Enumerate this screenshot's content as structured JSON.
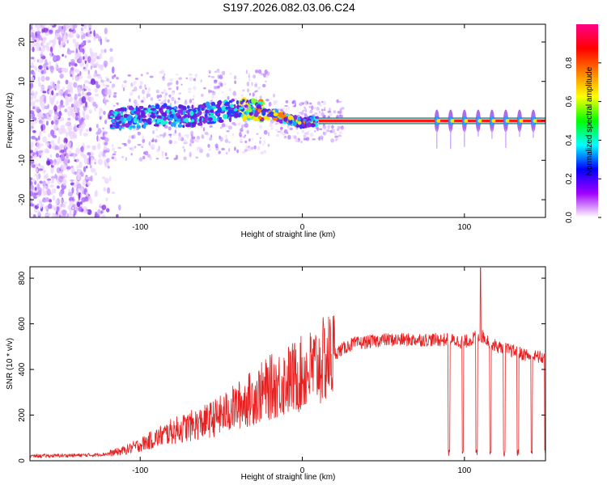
{
  "chart_data": [
    {
      "id": "spectrogram",
      "type": "heatmap",
      "title": "S197.2026.082.03.06.C24",
      "xlabel": "Height of straight line (km)",
      "ylabel": "Frequency (Hz)",
      "xlim": [
        -168,
        150
      ],
      "ylim": [
        -24.5,
        24.5
      ],
      "xticks": [
        -100,
        0,
        100
      ],
      "xtick_labels": [
        "-100",
        "0",
        "100"
      ],
      "yticks": [
        20,
        10,
        0,
        -10,
        -20
      ],
      "ytick_labels": [
        "20",
        "10",
        "0",
        "-10",
        "-20"
      ],
      "colorbar": {
        "label": "Normalized spectral amplitude",
        "range": [
          0.0,
          1.0
        ],
        "ticks": [
          0.0,
          0.2,
          0.4,
          0.6,
          0.8
        ],
        "tick_labels": [
          "0.0",
          "0.2",
          "0.4",
          "0.6",
          "0.8"
        ],
        "colors": [
          "#ffffff",
          "#a000ff",
          "#0000ff",
          "#00ffff",
          "#00ff00",
          "#ffff00",
          "#ff8000",
          "#ff0000",
          "#ff0088"
        ]
      },
      "carrier_track": [
        {
          "x": -115,
          "f": 0.5
        },
        {
          "x": -100,
          "f": 1.0
        },
        {
          "x": -85,
          "f": 1.5
        },
        {
          "x": -70,
          "f": 1.0
        },
        {
          "x": -55,
          "f": 2.0
        },
        {
          "x": -40,
          "f": 3.0
        },
        {
          "x": -30,
          "f": 3.0
        },
        {
          "x": -20,
          "f": 2.0
        },
        {
          "x": -10,
          "f": 0.5
        },
        {
          "x": 0,
          "f": -0.5
        },
        {
          "x": 10,
          "f": 0.0
        },
        {
          "x": 150,
          "f": 0.0
        }
      ],
      "comb_start": 83,
      "comb_period": 8.5
    },
    {
      "id": "snr",
      "type": "line",
      "xlabel": "Height of straight line (km)",
      "ylabel": "SNR (10 * v/v)",
      "xlim": [
        -168,
        150
      ],
      "ylim": [
        0,
        850
      ],
      "xticks": [
        -100,
        0,
        100
      ],
      "xtick_labels": [
        "-100",
        "0",
        "100"
      ],
      "yticks": [
        0,
        200,
        400,
        600,
        800
      ],
      "ytick_labels": [
        "0",
        "200",
        "400",
        "600",
        "800"
      ],
      "color": "#e62020",
      "series": [
        {
          "name": "SNR",
          "x": [
            -168,
            -130,
            -120,
            -110,
            -100,
            -90,
            -80,
            -70,
            -60,
            -50,
            -40,
            -30,
            -20,
            -10,
            0,
            10,
            20,
            30,
            40,
            50,
            60,
            70,
            80,
            90,
            100,
            110,
            120,
            130,
            140,
            150
          ],
          "values": [
            20,
            25,
            30,
            45,
            70,
            100,
            130,
            150,
            170,
            200,
            240,
            280,
            320,
            350,
            380,
            420,
            470,
            510,
            520,
            530,
            530,
            530,
            530,
            530,
            520,
            550,
            500,
            480,
            460,
            450
          ]
        }
      ],
      "drop_start": 90,
      "drop_period": 8.5,
      "peak": {
        "x": 110,
        "value": 845
      }
    }
  ]
}
